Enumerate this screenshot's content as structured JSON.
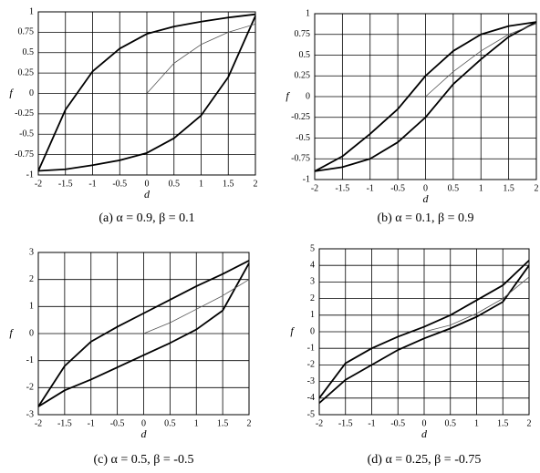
{
  "chart_data": [
    {
      "type": "line",
      "caption": "(a) α = 0.9,  β = 0.1",
      "xlabel": "d",
      "ylabel": "f",
      "grid": true,
      "x": [
        -2,
        -1.5,
        -1,
        -0.5,
        0,
        0.5,
        1,
        1.5,
        2
      ],
      "xlim": [
        -2,
        2
      ],
      "xticks": [
        -2,
        -1.5,
        -1,
        -0.5,
        0,
        0.5,
        1,
        1.5,
        2
      ],
      "ylim": [
        -1,
        1
      ],
      "yticks": [
        -1,
        -0.75,
        -0.5,
        -0.25,
        0,
        0.25,
        0.5,
        0.75,
        1
      ],
      "series": [
        {
          "color": "#000000",
          "values": [
            -0.95,
            -0.2,
            0.27,
            0.55,
            0.73,
            0.82,
            0.88,
            0.93,
            0.97
          ]
        },
        {
          "color": "#000000",
          "values": [
            -0.95,
            -0.93,
            -0.88,
            -0.82,
            -0.73,
            -0.55,
            -0.27,
            0.2,
            0.95
          ]
        },
        {
          "color": "#555555",
          "values": [
            null,
            null,
            null,
            null,
            0,
            0.37,
            0.6,
            0.75,
            0.85
          ]
        }
      ]
    },
    {
      "type": "line",
      "caption": "(b) α = 0.1,  β = 0.9",
      "xlabel": "d",
      "ylabel": "f",
      "grid": true,
      "x": [
        -2,
        -1.5,
        -1,
        -0.5,
        0,
        0.5,
        1,
        1.5,
        2
      ],
      "xlim": [
        -2,
        2
      ],
      "xticks": [
        -2,
        -1.5,
        -1,
        -0.5,
        0,
        0.5,
        1,
        1.5,
        2
      ],
      "ylim": [
        -1,
        1
      ],
      "yticks": [
        -1,
        -0.75,
        -0.5,
        -0.25,
        0,
        0.25,
        0.5,
        0.75,
        1
      ],
      "series": [
        {
          "color": "#000000",
          "values": [
            -0.9,
            -0.72,
            -0.45,
            -0.15,
            0.25,
            0.55,
            0.75,
            0.85,
            0.9
          ]
        },
        {
          "color": "#000000",
          "values": [
            -0.9,
            -0.85,
            -0.75,
            -0.55,
            -0.25,
            0.15,
            0.45,
            0.72,
            0.9
          ]
        },
        {
          "color": "#555555",
          "values": [
            null,
            null,
            null,
            null,
            0,
            0.3,
            0.55,
            0.75,
            0.88
          ]
        }
      ]
    },
    {
      "type": "line",
      "caption": "(c) α = 0.5,  β = -0.5",
      "xlabel": "d",
      "ylabel": "f",
      "grid": true,
      "x": [
        -2,
        -1.5,
        -1,
        -0.5,
        0,
        0.5,
        1,
        1.5,
        2
      ],
      "xlim": [
        -2,
        2
      ],
      "xticks": [
        -2,
        -1.5,
        -1,
        -0.5,
        0,
        0.5,
        1,
        1.5,
        2
      ],
      "ylim": [
        -3,
        3
      ],
      "yticks": [
        -3,
        -2,
        -1,
        0,
        1,
        2,
        3
      ],
      "series": [
        {
          "color": "#000000",
          "values": [
            -2.7,
            -1.2,
            -0.3,
            0.25,
            0.75,
            1.25,
            1.75,
            2.2,
            2.7
          ]
        },
        {
          "color": "#000000",
          "values": [
            -2.7,
            -2.1,
            -1.7,
            -1.25,
            -0.8,
            -0.35,
            0.15,
            0.85,
            2.6
          ]
        },
        {
          "color": "#555555",
          "values": [
            null,
            null,
            null,
            null,
            0,
            0.4,
            0.9,
            1.4,
            2.0
          ]
        }
      ]
    },
    {
      "type": "line",
      "caption": "(d) α = 0.25, β = -0.75",
      "xlabel": "d",
      "ylabel": "f",
      "grid": true,
      "x": [
        -2,
        -1.5,
        -1,
        -0.5,
        0,
        0.5,
        1,
        1.5,
        2
      ],
      "xlim": [
        -2,
        2
      ],
      "xticks": [
        -2,
        -1.5,
        -1,
        -0.5,
        0,
        0.5,
        1,
        1.5,
        2
      ],
      "ylim": [
        -5,
        5
      ],
      "yticks": [
        -5,
        -4,
        -3,
        -2,
        -1,
        0,
        1,
        2,
        3,
        4,
        5
      ],
      "series": [
        {
          "color": "#000000",
          "values": [
            -4.0,
            -1.9,
            -1.0,
            -0.3,
            0.3,
            1.0,
            1.9,
            2.8,
            4.3
          ]
        },
        {
          "color": "#000000",
          "values": [
            -4.3,
            -2.9,
            -2.0,
            -1.1,
            -0.4,
            0.2,
            0.9,
            1.8,
            4.0
          ]
        },
        {
          "color": "#555555",
          "values": [
            null,
            null,
            null,
            null,
            0,
            0.4,
            1.1,
            2.0,
            3.3
          ]
        }
      ]
    }
  ]
}
